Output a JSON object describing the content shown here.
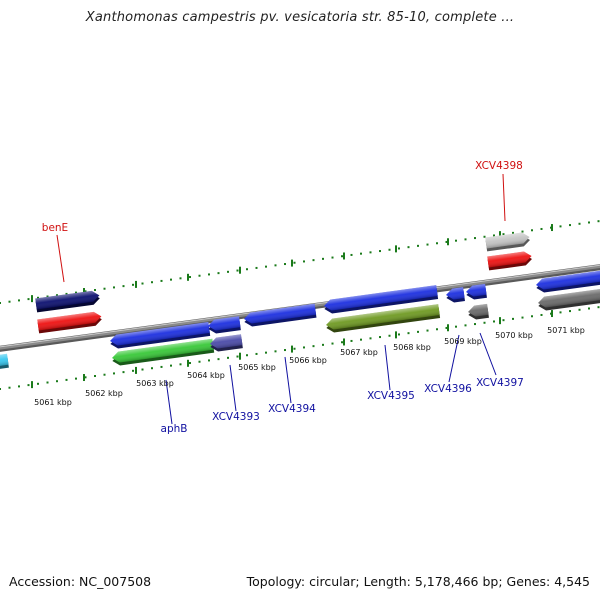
{
  "title": "Xanthomonas campestris pv. vesicatoria str. 85-10, complete ...",
  "footer": {
    "accession": "Accession: NC_007508",
    "summary": "Topology: circular; Length: 5,178,466 bp; Genes: 4,545"
  },
  "colors": {
    "backbone": "#8a8a8a",
    "tick": "#1a7a1a",
    "strand_dots": "#1a7a1a",
    "gene_blue": "#1c2fe0",
    "gene_red": "#ee1111",
    "gene_navy": "#0c1070",
    "gene_green": "#38c838",
    "gene_olive": "#6f9a22",
    "gene_slate": "#4a4aa8",
    "gene_light_gray": "#c4c4c4",
    "gene_dark_gray": "#6a6a6a",
    "gene_cyan": "#38c8f0",
    "label_red": "#d01010",
    "label_blue": "#1010a0"
  },
  "scale_labels": [
    "5061 kbp",
    "5062 kbp",
    "5063 kbp",
    "5064 kbp",
    "5065 kbp",
    "5066 kbp",
    "5067 kbp",
    "5068 kbp",
    "5069 kbp",
    "5070 kbp",
    "5071 kbp"
  ],
  "genes": [
    {
      "id": "g_cyan_partial",
      "color": "gene_cyan",
      "strand": "reverse",
      "row": 1
    },
    {
      "id": "g_navy_top",
      "color": "gene_navy",
      "strand": "forward",
      "row": 2
    },
    {
      "id": "benE",
      "color": "gene_red",
      "strand": "forward",
      "row": 1
    },
    {
      "id": "g_blue_1",
      "color": "gene_blue",
      "strand": "reverse",
      "row": 1
    },
    {
      "id": "aphB",
      "color": "gene_green",
      "strand": "reverse",
      "row": 2
    },
    {
      "id": "XCV4393",
      "color": "gene_blue",
      "strand": "reverse",
      "row": 1
    },
    {
      "id": "g_slate",
      "color": "gene_slate",
      "strand": "reverse",
      "row": 2
    },
    {
      "id": "XCV4394",
      "color": "gene_blue",
      "strand": "reverse",
      "row": 1
    },
    {
      "id": "XCV4395",
      "color": "gene_blue",
      "strand": "reverse",
      "row": 1
    },
    {
      "id": "g_olive",
      "color": "gene_olive",
      "strand": "reverse",
      "row": 2
    },
    {
      "id": "XCV4396",
      "color": "gene_blue",
      "strand": "reverse",
      "row": 1
    },
    {
      "id": "XCV4397",
      "color": "gene_blue",
      "strand": "reverse",
      "row": 1
    },
    {
      "id": "g_gray_small",
      "color": "gene_dark_gray",
      "strand": "reverse",
      "row": 2
    },
    {
      "id": "g_lightgray",
      "color": "gene_light_gray",
      "strand": "forward",
      "row": 2
    },
    {
      "id": "XCV4398",
      "color": "gene_red",
      "strand": "forward",
      "row": 1
    },
    {
      "id": "g_blue_right",
      "color": "gene_blue",
      "strand": "reverse",
      "row": 1
    },
    {
      "id": "g_gray_right",
      "color": "gene_dark_gray",
      "strand": "reverse",
      "row": 2
    }
  ],
  "gene_labels": [
    {
      "text": "benE",
      "color": "label_red"
    },
    {
      "text": "XCV4398",
      "color": "label_red"
    },
    {
      "text": "aphB",
      "color": "label_blue"
    },
    {
      "text": "XCV4393",
      "color": "label_blue"
    },
    {
      "text": "XCV4394",
      "color": "label_blue"
    },
    {
      "text": "XCV4395",
      "color": "label_blue"
    },
    {
      "text": "XCV4396",
      "color": "label_blue"
    },
    {
      "text": "XCV4397",
      "color": "label_blue"
    }
  ]
}
